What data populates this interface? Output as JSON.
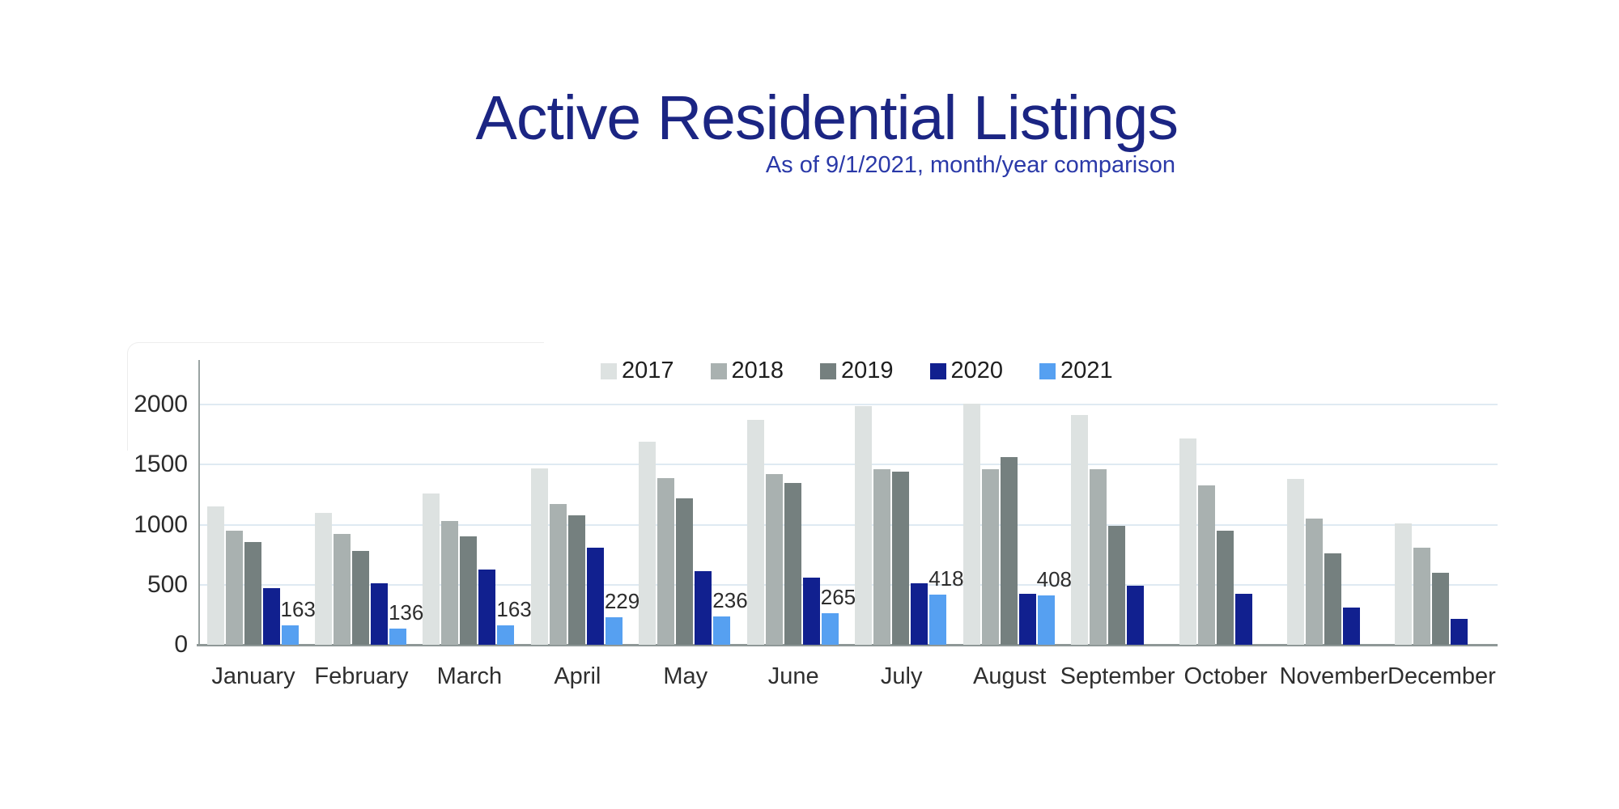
{
  "title": "Active Residential Listings",
  "subtitle": "As of 9/1/2021, month/year comparison",
  "colors": {
    "title_text": "#1b2583",
    "subtitle_text": "#2a39a8",
    "gridline": "#dfeaf2",
    "axis_line": "#8f9897"
  },
  "chart_data": {
    "type": "bar",
    "title": "Active Residential Listings",
    "subtitle": "As of 9/1/2021, month/year comparison",
    "categories": [
      "January",
      "February",
      "March",
      "April",
      "May",
      "June",
      "July",
      "August",
      "September",
      "October",
      "November",
      "December"
    ],
    "series": [
      {
        "name": "2017",
        "color": "#dde2e1",
        "show_data_labels": false,
        "values": [
          1150,
          1100,
          1260,
          1470,
          1690,
          1870,
          1990,
          2010,
          1910,
          1720,
          1380,
          1010
        ]
      },
      {
        "name": "2018",
        "color": "#a9b1b0",
        "show_data_labels": false,
        "values": [
          950,
          920,
          1030,
          1170,
          1390,
          1420,
          1460,
          1460,
          1460,
          1330,
          1050,
          805
        ]
      },
      {
        "name": "2019",
        "color": "#75807f",
        "show_data_labels": false,
        "values": [
          855,
          780,
          900,
          1080,
          1220,
          1350,
          1440,
          1560,
          990,
          950,
          760,
          600
        ]
      },
      {
        "name": "2020",
        "color": "#11208f",
        "show_data_labels": false,
        "values": [
          470,
          510,
          625,
          810,
          610,
          560,
          515,
          425,
          495,
          425,
          310,
          215
        ]
      },
      {
        "name": "2021",
        "color": "#56a0f1",
        "show_data_labels": true,
        "values": [
          163,
          136,
          163,
          229,
          236,
          265,
          418,
          408,
          null,
          null,
          null,
          null
        ]
      }
    ],
    "ylim": [
      0,
      2000
    ],
    "yticks": [
      0,
      500,
      1000,
      1500,
      2000
    ],
    "grid": true,
    "legend_position": "top-center",
    "notes": "2021 data ends in August (as of 9/1/2021); visible data labels only on 2021 series"
  }
}
